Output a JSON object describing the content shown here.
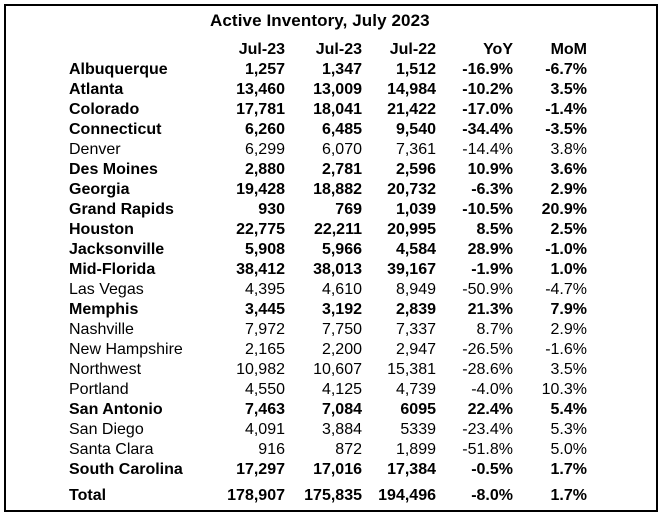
{
  "title": "Active Inventory, July 2023",
  "columns": [
    "Jul-23",
    "Jul-23",
    "Jul-22",
    "YoY",
    "MoM"
  ],
  "rows": [
    {
      "name": "Albuquerque",
      "v1": "1,257",
      "v2": "1,347",
      "v3": "1,512",
      "yoy": "-16.9%",
      "mom": "-6.7%",
      "bold": true
    },
    {
      "name": "Atlanta",
      "v1": "13,460",
      "v2": "13,009",
      "v3": "14,984",
      "yoy": "-10.2%",
      "mom": "3.5%",
      "bold": true
    },
    {
      "name": "Colorado",
      "v1": "17,781",
      "v2": "18,041",
      "v3": "21,422",
      "yoy": "-17.0%",
      "mom": "-1.4%",
      "bold": true
    },
    {
      "name": "Connecticut",
      "v1": "6,260",
      "v2": "6,485",
      "v3": "9,540",
      "yoy": "-34.4%",
      "mom": "-3.5%",
      "bold": true
    },
    {
      "name": "Denver",
      "v1": "6,299",
      "v2": "6,070",
      "v3": "7,361",
      "yoy": "-14.4%",
      "mom": "3.8%",
      "bold": false
    },
    {
      "name": "Des Moines",
      "v1": "2,880",
      "v2": "2,781",
      "v3": "2,596",
      "yoy": "10.9%",
      "mom": "3.6%",
      "bold": true
    },
    {
      "name": "Georgia",
      "v1": "19,428",
      "v2": "18,882",
      "v3": "20,732",
      "yoy": "-6.3%",
      "mom": "2.9%",
      "bold": true
    },
    {
      "name": "Grand Rapids",
      "v1": "930",
      "v2": "769",
      "v3": "1,039",
      "yoy": "-10.5%",
      "mom": "20.9%",
      "bold": true
    },
    {
      "name": "Houston",
      "v1": "22,775",
      "v2": "22,211",
      "v3": "20,995",
      "yoy": "8.5%",
      "mom": "2.5%",
      "bold": true
    },
    {
      "name": "Jacksonville",
      "v1": "5,908",
      "v2": "5,966",
      "v3": "4,584",
      "yoy": "28.9%",
      "mom": "-1.0%",
      "bold": true
    },
    {
      "name": "Mid-Florida",
      "v1": "38,412",
      "v2": "38,013",
      "v3": "39,167",
      "yoy": "-1.9%",
      "mom": "1.0%",
      "bold": true
    },
    {
      "name": "Las Vegas",
      "v1": "4,395",
      "v2": "4,610",
      "v3": "8,949",
      "yoy": "-50.9%",
      "mom": "-4.7%",
      "bold": false
    },
    {
      "name": "Memphis",
      "v1": "3,445",
      "v2": "3,192",
      "v3": "2,839",
      "yoy": "21.3%",
      "mom": "7.9%",
      "bold": true
    },
    {
      "name": "Nashville",
      "v1": "7,972",
      "v2": "7,750",
      "v3": "7,337",
      "yoy": "8.7%",
      "mom": "2.9%",
      "bold": false
    },
    {
      "name": "New Hampshire",
      "v1": "2,165",
      "v2": "2,200",
      "v3": "2,947",
      "yoy": "-26.5%",
      "mom": "-1.6%",
      "bold": false
    },
    {
      "name": "Northwest",
      "v1": "10,982",
      "v2": "10,607",
      "v3": "15,381",
      "yoy": "-28.6%",
      "mom": "3.5%",
      "bold": false
    },
    {
      "name": "Portland",
      "v1": "4,550",
      "v2": "4,125",
      "v3": "4,739",
      "yoy": "-4.0%",
      "mom": "10.3%",
      "bold": false
    },
    {
      "name": "San Antonio",
      "v1": "7,463",
      "v2": "7,084",
      "v3": "6095",
      "yoy": "22.4%",
      "mom": "5.4%",
      "bold": true
    },
    {
      "name": "San Diego",
      "v1": "4,091",
      "v2": "3,884",
      "v3": "5339",
      "yoy": "-23.4%",
      "mom": "5.3%",
      "bold": false
    },
    {
      "name": "Santa Clara",
      "v1": "916",
      "v2": "872",
      "v3": "1,899",
      "yoy": "-51.8%",
      "mom": "5.0%",
      "bold": false
    },
    {
      "name": "South Carolina",
      "v1": "17,297",
      "v2": "17,016",
      "v3": "17,384",
      "yoy": "-0.5%",
      "mom": "1.7%",
      "bold": true
    }
  ],
  "total": {
    "name": "Total",
    "v1": "178,907",
    "v2": "175,835",
    "v3": "194,496",
    "yoy": "-8.0%",
    "mom": "1.7%"
  }
}
